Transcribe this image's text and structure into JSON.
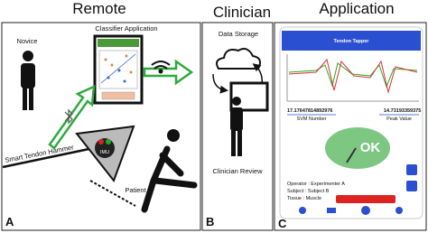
{
  "headers": {
    "remote": "Remote",
    "clinician": "Clinician",
    "application": "Application"
  },
  "panel_a": {
    "novice": "Novice",
    "classifier": "Classifier Application",
    "hammer": "Smart Tendon Hammer",
    "imu": "IMU",
    "patient": "Patient",
    "label": "A"
  },
  "panel_b": {
    "storage": "Data Storage",
    "review": "Clinician Review",
    "label": "B"
  },
  "panel_c": {
    "app_title": "Tendon Tapper",
    "svm_value": "17.17647814892976",
    "peak_value": "14.73193359375",
    "svm_label": "SVM Number",
    "peak_label": "Peak Value",
    "ok": "OK",
    "operator": "Operator : Experimenter A",
    "subject": "Subject : Subject B",
    "tissue": "Tissue : Muscle",
    "label": "C"
  }
}
